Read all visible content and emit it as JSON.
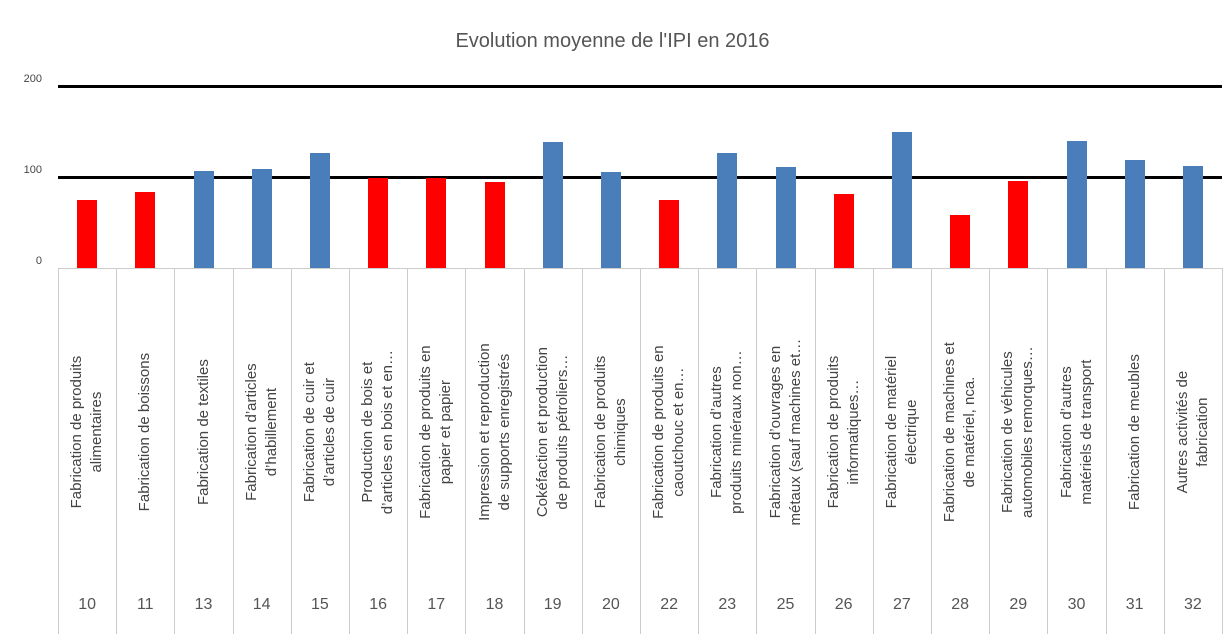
{
  "chart_data": {
    "type": "bar",
    "title": "Evolution moyenne de l'IPI en 2016",
    "categories": [
      "Fabrication de produits\nalimentaires",
      "Fabrication de boissons",
      "Fabrication de textiles",
      "Fabrication d’articles\nd’habillement",
      "Fabrication de cuir et\nd’articles de cuir",
      "Production de bois et\nd’articles en bois et en…",
      "Fabrication de produits en\npapier et papier",
      "Impression et reproduction\nde supports enregistrés",
      "Cokéfaction et production\nde produits pétroliers…",
      "Fabrication de produits\nchimiques",
      "Fabrication de produits en\ncaoutchouc et en…",
      "Fabrication d’autres\nproduits minéraux non…",
      "Fabrication d’ouvrages en\nmétaux (sauf machines et…",
      "Fabrication de produits\ninformatiques…",
      "Fabrication de matériel\nélectrique",
      "Fabrication de machines et\nde matériel, nca.",
      "Fabrication de véhicules\nautomobiles remorques…",
      "Fabrication d’autres\nmatériels de transport",
      "Fabrication de meubles",
      "Autres activités de\nfabrication"
    ],
    "codes": [
      "10",
      "11",
      "13",
      "14",
      "15",
      "16",
      "17",
      "18",
      "19",
      "20",
      "22",
      "23",
      "25",
      "26",
      "27",
      "28",
      "29",
      "30",
      "31",
      "32"
    ],
    "values": [
      75,
      83,
      107,
      109,
      126,
      99,
      99,
      94,
      139,
      105,
      75,
      126,
      111,
      81,
      149,
      58,
      96,
      140,
      119,
      112
    ],
    "colors": [
      "#ff0000",
      "#ff0000",
      "#4a7ebb",
      "#4a7ebb",
      "#4a7ebb",
      "#ff0000",
      "#ff0000",
      "#ff0000",
      "#4a7ebb",
      "#4a7ebb",
      "#ff0000",
      "#4a7ebb",
      "#4a7ebb",
      "#ff0000",
      "#4a7ebb",
      "#ff0000",
      "#ff0000",
      "#4a7ebb",
      "#4a7ebb",
      "#4a7ebb"
    ],
    "ylim": [
      0,
      200
    ],
    "yticks": [
      0,
      100,
      200
    ],
    "grid": true
  }
}
